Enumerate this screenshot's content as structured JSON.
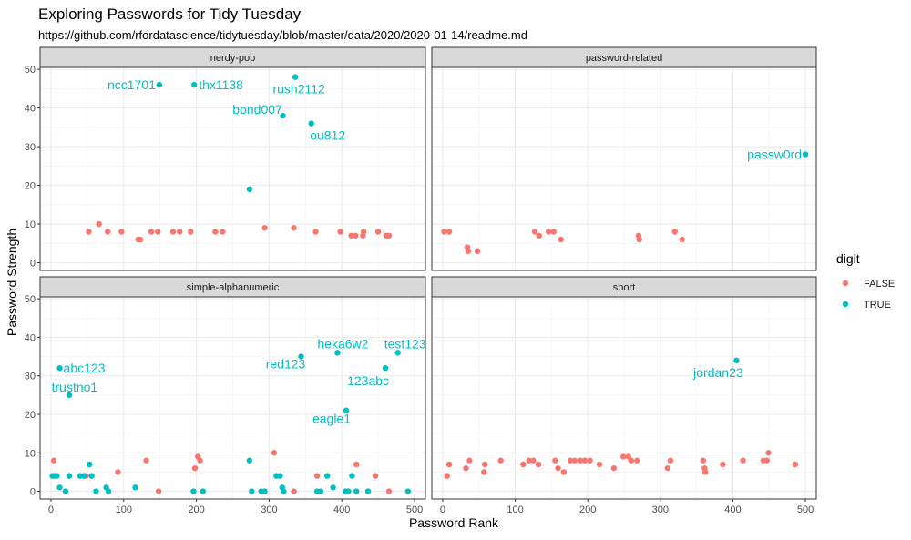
{
  "title": "Exploring Passwords for Tidy Tuesday",
  "subtitle": "https://github.com/rfordatascience/tidytuesday/blob/master/data/2020/2020-01-14/readme.md",
  "chart_data": {
    "type": "scatter",
    "xlabel": "Password Rank",
    "ylabel": "Password Strength",
    "xlim": [
      -15,
      515
    ],
    "ylim": [
      -2,
      50.5
    ],
    "x_ticks": [
      0,
      100,
      200,
      300,
      400,
      500
    ],
    "y_ticks": [
      0,
      10,
      20,
      30,
      40,
      50
    ],
    "grid": true,
    "legend": {
      "title": "digit",
      "placement": "right",
      "entries": [
        {
          "label": "FALSE",
          "color": "#F8766D"
        },
        {
          "label": "TRUE",
          "color": "#00BFC4"
        }
      ]
    },
    "colors": {
      "FALSE": "#F8766D",
      "TRUE": "#00BFC4"
    },
    "panels": [
      {
        "name": "nerdy-pop",
        "points": [
          {
            "x": 52,
            "y": 8,
            "digit": false
          },
          {
            "x": 66,
            "y": 10,
            "digit": false
          },
          {
            "x": 78,
            "y": 8,
            "digit": false
          },
          {
            "x": 97,
            "y": 8,
            "digit": false
          },
          {
            "x": 120,
            "y": 6,
            "digit": false
          },
          {
            "x": 123,
            "y": 6,
            "digit": false
          },
          {
            "x": 138,
            "y": 8,
            "digit": false
          },
          {
            "x": 147,
            "y": 8,
            "digit": false
          },
          {
            "x": 168,
            "y": 8,
            "digit": false
          },
          {
            "x": 177,
            "y": 8,
            "digit": false
          },
          {
            "x": 192,
            "y": 8,
            "digit": false
          },
          {
            "x": 226,
            "y": 8,
            "digit": false
          },
          {
            "x": 236,
            "y": 8,
            "digit": false
          },
          {
            "x": 294,
            "y": 9,
            "digit": false
          },
          {
            "x": 334,
            "y": 9,
            "digit": false
          },
          {
            "x": 364,
            "y": 8,
            "digit": false
          },
          {
            "x": 398,
            "y": 8,
            "digit": false
          },
          {
            "x": 413,
            "y": 7,
            "digit": false
          },
          {
            "x": 419,
            "y": 7,
            "digit": false
          },
          {
            "x": 429,
            "y": 7,
            "digit": false
          },
          {
            "x": 430,
            "y": 8,
            "digit": false
          },
          {
            "x": 450,
            "y": 8,
            "digit": false
          },
          {
            "x": 461,
            "y": 7,
            "digit": false
          },
          {
            "x": 465,
            "y": 7,
            "digit": false
          },
          {
            "x": 149,
            "y": 46,
            "digit": true,
            "label": "ncc1701"
          },
          {
            "x": 197,
            "y": 46,
            "digit": true,
            "label": "thx1138"
          },
          {
            "x": 336,
            "y": 48,
            "digit": true,
            "label": "rush2112"
          },
          {
            "x": 319,
            "y": 38,
            "digit": true,
            "label": "bond007"
          },
          {
            "x": 358,
            "y": 36,
            "digit": true,
            "label": "ou812"
          },
          {
            "x": 273,
            "y": 19,
            "digit": true
          }
        ]
      },
      {
        "name": "password-related",
        "points": [
          {
            "x": 2,
            "y": 8,
            "digit": false
          },
          {
            "x": 9,
            "y": 8,
            "digit": false
          },
          {
            "x": 34,
            "y": 4,
            "digit": false
          },
          {
            "x": 35,
            "y": 3,
            "digit": false
          },
          {
            "x": 48,
            "y": 3,
            "digit": false
          },
          {
            "x": 127,
            "y": 8,
            "digit": false
          },
          {
            "x": 133,
            "y": 7,
            "digit": false
          },
          {
            "x": 146,
            "y": 8,
            "digit": false
          },
          {
            "x": 153,
            "y": 8,
            "digit": false
          },
          {
            "x": 163,
            "y": 6,
            "digit": false
          },
          {
            "x": 270,
            "y": 7,
            "digit": false
          },
          {
            "x": 271,
            "y": 6,
            "digit": false
          },
          {
            "x": 320,
            "y": 8,
            "digit": false
          },
          {
            "x": 330,
            "y": 6,
            "digit": false
          },
          {
            "x": 500,
            "y": 28,
            "digit": true,
            "label": "passw0rd"
          }
        ]
      },
      {
        "name": "simple-alphanumeric",
        "points": [
          {
            "x": 4,
            "y": 8,
            "digit": false
          },
          {
            "x": 48,
            "y": 4,
            "digit": false
          },
          {
            "x": 92,
            "y": 5,
            "digit": false
          },
          {
            "x": 131,
            "y": 8,
            "digit": false
          },
          {
            "x": 202,
            "y": 9,
            "digit": false
          },
          {
            "x": 205,
            "y": 8,
            "digit": false
          },
          {
            "x": 198,
            "y": 6,
            "digit": false
          },
          {
            "x": 307,
            "y": 10,
            "digit": false
          },
          {
            "x": 366,
            "y": 4,
            "digit": false
          },
          {
            "x": 420,
            "y": 7,
            "digit": false
          },
          {
            "x": 446,
            "y": 4,
            "digit": false
          },
          {
            "x": 148,
            "y": 0,
            "digit": false
          },
          {
            "x": 334,
            "y": 0,
            "digit": false
          },
          {
            "x": 465,
            "y": 0,
            "digit": false
          },
          {
            "x": 2,
            "y": 4,
            "digit": true
          },
          {
            "x": 5,
            "y": 4,
            "digit": true
          },
          {
            "x": 8,
            "y": 4,
            "digit": true
          },
          {
            "x": 12,
            "y": 1,
            "digit": true
          },
          {
            "x": 20,
            "y": 0,
            "digit": true
          },
          {
            "x": 25,
            "y": 4,
            "digit": true
          },
          {
            "x": 40,
            "y": 4,
            "digit": true
          },
          {
            "x": 45,
            "y": 4,
            "digit": true
          },
          {
            "x": 53,
            "y": 7,
            "digit": true
          },
          {
            "x": 56,
            "y": 4,
            "digit": true
          },
          {
            "x": 62,
            "y": 0,
            "digit": true
          },
          {
            "x": 76,
            "y": 1,
            "digit": true
          },
          {
            "x": 79,
            "y": 0,
            "digit": true
          },
          {
            "x": 116,
            "y": 1,
            "digit": true
          },
          {
            "x": 196,
            "y": 0,
            "digit": true
          },
          {
            "x": 209,
            "y": 0,
            "digit": true
          },
          {
            "x": 273,
            "y": 8,
            "digit": true
          },
          {
            "x": 276,
            "y": 0,
            "digit": true
          },
          {
            "x": 289,
            "y": 0,
            "digit": true
          },
          {
            "x": 294,
            "y": 0,
            "digit": true
          },
          {
            "x": 310,
            "y": 4,
            "digit": true
          },
          {
            "x": 315,
            "y": 4,
            "digit": true
          },
          {
            "x": 318,
            "y": 1,
            "digit": true
          },
          {
            "x": 320,
            "y": 0,
            "digit": true
          },
          {
            "x": 366,
            "y": 0,
            "digit": true
          },
          {
            "x": 371,
            "y": 0,
            "digit": true
          },
          {
            "x": 380,
            "y": 4,
            "digit": true
          },
          {
            "x": 388,
            "y": 1,
            "digit": true
          },
          {
            "x": 405,
            "y": 0,
            "digit": true
          },
          {
            "x": 409,
            "y": 0,
            "digit": true
          },
          {
            "x": 414,
            "y": 4,
            "digit": true
          },
          {
            "x": 420,
            "y": 0,
            "digit": true
          },
          {
            "x": 436,
            "y": 0,
            "digit": true
          },
          {
            "x": 491,
            "y": 0,
            "digit": true
          },
          {
            "x": 12,
            "y": 32,
            "digit": true,
            "label": "abc123"
          },
          {
            "x": 25,
            "y": 25,
            "digit": true,
            "label": "trustno1"
          },
          {
            "x": 344,
            "y": 35,
            "digit": true,
            "label": "red123"
          },
          {
            "x": 394,
            "y": 36,
            "digit": true,
            "label": "heka6w2"
          },
          {
            "x": 477,
            "y": 36,
            "digit": true,
            "label": "test123"
          },
          {
            "x": 460,
            "y": 32,
            "digit": true,
            "label": "123abc"
          },
          {
            "x": 406,
            "y": 21,
            "digit": true,
            "label": "eagle1"
          }
        ]
      },
      {
        "name": "sport",
        "points": [
          {
            "x": 6,
            "y": 4,
            "digit": false
          },
          {
            "x": 9,
            "y": 7,
            "digit": false
          },
          {
            "x": 32,
            "y": 6,
            "digit": false
          },
          {
            "x": 37,
            "y": 8,
            "digit": false
          },
          {
            "x": 57,
            "y": 5,
            "digit": false
          },
          {
            "x": 58,
            "y": 7,
            "digit": false
          },
          {
            "x": 80,
            "y": 8,
            "digit": false
          },
          {
            "x": 111,
            "y": 7,
            "digit": false
          },
          {
            "x": 119,
            "y": 8,
            "digit": false
          },
          {
            "x": 125,
            "y": 8,
            "digit": false
          },
          {
            "x": 132,
            "y": 7,
            "digit": false
          },
          {
            "x": 155,
            "y": 8,
            "digit": false
          },
          {
            "x": 159,
            "y": 6,
            "digit": false
          },
          {
            "x": 167,
            "y": 5,
            "digit": false
          },
          {
            "x": 176,
            "y": 8,
            "digit": false
          },
          {
            "x": 182,
            "y": 8,
            "digit": false
          },
          {
            "x": 190,
            "y": 8,
            "digit": false
          },
          {
            "x": 196,
            "y": 8,
            "digit": false
          },
          {
            "x": 203,
            "y": 8,
            "digit": false
          },
          {
            "x": 216,
            "y": 7,
            "digit": false
          },
          {
            "x": 236,
            "y": 6,
            "digit": false
          },
          {
            "x": 249,
            "y": 9,
            "digit": false
          },
          {
            "x": 256,
            "y": 9,
            "digit": false
          },
          {
            "x": 260,
            "y": 8,
            "digit": false
          },
          {
            "x": 268,
            "y": 8,
            "digit": false
          },
          {
            "x": 310,
            "y": 6,
            "digit": false
          },
          {
            "x": 314,
            "y": 8,
            "digit": false
          },
          {
            "x": 359,
            "y": 8,
            "digit": false
          },
          {
            "x": 361,
            "y": 6,
            "digit": false
          },
          {
            "x": 362,
            "y": 5,
            "digit": false
          },
          {
            "x": 386,
            "y": 7,
            "digit": false
          },
          {
            "x": 414,
            "y": 8,
            "digit": false
          },
          {
            "x": 442,
            "y": 8,
            "digit": false
          },
          {
            "x": 447,
            "y": 8,
            "digit": false
          },
          {
            "x": 449,
            "y": 10,
            "digit": false
          },
          {
            "x": 486,
            "y": 7,
            "digit": false
          },
          {
            "x": 405,
            "y": 34,
            "digit": true,
            "label": "jordan23"
          }
        ]
      }
    ]
  }
}
